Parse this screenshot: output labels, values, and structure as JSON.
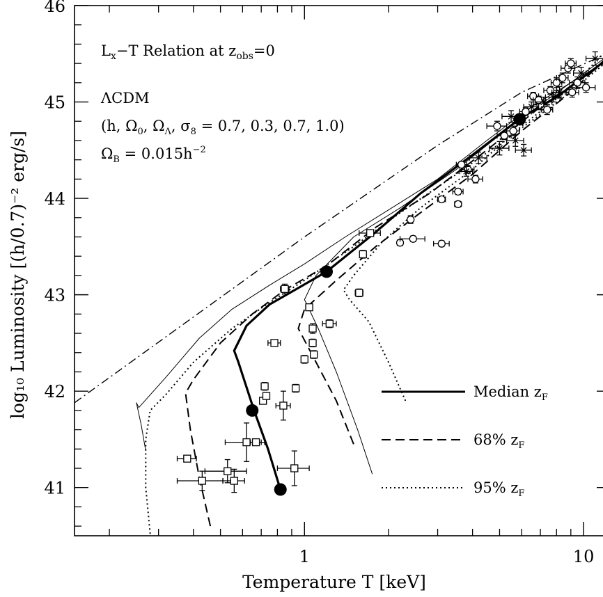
{
  "chart_data": {
    "type": "line",
    "xlabel": "Temperature T [keV]",
    "ylabel": "log₁₀ Luminosity [(h/0.7)⁻² erg/s]",
    "xscale": "log",
    "xlim": [
      0.15,
      12.5
    ],
    "ylim": [
      40.5,
      46.0
    ],
    "x_ticks": [
      {
        "value": 1,
        "label": "1"
      },
      {
        "value": 10,
        "label": "10"
      }
    ],
    "y_ticks": [
      {
        "value": 41,
        "label": "41"
      },
      {
        "value": 42,
        "label": "42"
      },
      {
        "value": 43,
        "label": "43"
      },
      {
        "value": 44,
        "label": "44"
      },
      {
        "value": 45,
        "label": "45"
      },
      {
        "value": 46,
        "label": "46"
      }
    ],
    "annotations": {
      "title": "Lx−T Relation at zobs=0",
      "cosmology": "ΛCDM",
      "params": "(h, Ω0, ΩΛ, σ8 = 0.7, 0.3, 0.7, 1.0)",
      "baryon": "ΩB = 0.015h⁻²"
    },
    "legend": [
      {
        "label": "Median zF",
        "style": "solid"
      },
      {
        "label": "68% zF",
        "style": "dashed"
      },
      {
        "label": "95% zF",
        "style": "dotted"
      }
    ],
    "series": [
      {
        "style": "dashdot",
        "width": 1.4,
        "x": [
          0.15,
          1.0,
          3.0,
          6.0,
          12.5
        ],
        "y": [
          41.88,
          43.6,
          44.55,
          45.1,
          45.52
        ]
      },
      {
        "style": "solid",
        "width": 3.2,
        "x": [
          0.82,
          0.74,
          0.66,
          0.58,
          0.56,
          0.62,
          0.75,
          0.95,
          1.2,
          1.8,
          2.6,
          4.0,
          6.0,
          8.0,
          12.5
        ],
        "y": [
          40.98,
          41.4,
          41.8,
          42.3,
          42.42,
          42.68,
          42.9,
          43.07,
          43.24,
          43.65,
          44.05,
          44.45,
          44.84,
          45.05,
          45.47
        ]
      },
      {
        "style": "solid",
        "width": 1.0,
        "x": [
          0.27,
          0.26,
          0.25,
          0.255,
          0.32,
          0.42,
          0.55,
          0.75,
          1.0,
          1.4,
          2.0,
          3.0,
          4.5,
          6.5,
          9.0,
          12.5
        ],
        "y": [
          41.38,
          41.65,
          41.88,
          41.83,
          42.15,
          42.55,
          42.85,
          43.1,
          43.32,
          43.6,
          43.88,
          44.2,
          44.6,
          44.95,
          45.2,
          45.45
        ]
      },
      {
        "style": "solid",
        "width": 1.0,
        "x": [
          1.75,
          1.55,
          1.3,
          1.12,
          1.02,
          1.0,
          1.1,
          1.5,
          2.2,
          3.5,
          5.5,
          8.5,
          12.5
        ],
        "y": [
          41.14,
          41.6,
          42.2,
          42.65,
          42.9,
          42.95,
          43.2,
          43.6,
          43.9,
          44.3,
          44.75,
          45.15,
          45.5
        ]
      },
      {
        "style": "dashed",
        "width": 2.0,
        "x": [
          0.46,
          0.42,
          0.39,
          0.375,
          0.4,
          0.5,
          0.65,
          0.85,
          1.2,
          1.8,
          2.8,
          4.5,
          7.0,
          12.5
        ],
        "y": [
          40.6,
          41.1,
          41.6,
          41.98,
          42.12,
          42.5,
          42.8,
          43.05,
          43.3,
          43.7,
          44.05,
          44.5,
          44.95,
          45.45
        ]
      },
      {
        "style": "dashed",
        "width": 2.0,
        "x": [
          1.5,
          1.3,
          1.1,
          0.95,
          1.0,
          1.3,
          1.8,
          2.6,
          4.0,
          6.0,
          9.0,
          12.5
        ],
        "y": [
          41.45,
          41.9,
          42.3,
          42.65,
          42.85,
          43.15,
          43.5,
          43.85,
          44.25,
          44.7,
          45.1,
          45.5
        ]
      },
      {
        "style": "dotted",
        "width": 2.0,
        "x": [
          0.28,
          0.27,
          0.27,
          0.28,
          0.32,
          0.4,
          0.55,
          0.75,
          1.0,
          1.5,
          2.2,
          3.5,
          5.5,
          8.5,
          12.5
        ],
        "y": [
          40.52,
          41.0,
          41.5,
          41.8,
          41.97,
          42.3,
          42.65,
          42.92,
          43.15,
          43.5,
          43.85,
          44.25,
          44.65,
          45.05,
          45.45
        ]
      },
      {
        "style": "dotted",
        "width": 2.0,
        "x": [
          2.3,
          2.0,
          1.7,
          1.45,
          1.38,
          1.5,
          1.9,
          2.6,
          4.0,
          6.0,
          9.0,
          12.5
        ],
        "y": [
          41.9,
          42.3,
          42.72,
          42.95,
          43.05,
          43.2,
          43.55,
          43.9,
          44.3,
          44.75,
          45.15,
          45.58
        ]
      }
    ],
    "marker_points": [
      {
        "x": 0.82,
        "y": 40.98
      },
      {
        "x": 0.65,
        "y": 41.8
      },
      {
        "x": 1.2,
        "y": 43.24
      },
      {
        "x": 5.9,
        "y": 44.82
      }
    ],
    "observations_squares": [
      {
        "x": 0.38,
        "y": 41.3,
        "xerr": 0.03,
        "yerr": 0.03
      },
      {
        "x": 0.43,
        "y": 41.07,
        "xerr": 0.08,
        "yerr": 0.1
      },
      {
        "x": 0.53,
        "y": 41.17,
        "xerr": 0.09,
        "yerr": 0.12
      },
      {
        "x": 0.56,
        "y": 41.07,
        "xerr": 0.05,
        "yerr": 0.12
      },
      {
        "x": 0.62,
        "y": 41.47,
        "xerr": 0.1,
        "yerr": 0.2
      },
      {
        "x": 0.67,
        "y": 41.47,
        "xerr": 0.03,
        "yerr": 0.03
      },
      {
        "x": 0.71,
        "y": 41.9,
        "xerr": 0.02,
        "yerr": 0.03
      },
      {
        "x": 0.72,
        "y": 42.05,
        "xerr": 0.02,
        "yerr": 0.04
      },
      {
        "x": 0.73,
        "y": 41.95,
        "xerr": 0.02,
        "yerr": 0.03
      },
      {
        "x": 0.84,
        "y": 41.85,
        "xerr": 0.05,
        "yerr": 0.15
      },
      {
        "x": 0.92,
        "y": 41.2,
        "xerr": 0.12,
        "yerr": 0.18
      },
      {
        "x": 0.93,
        "y": 42.03,
        "xerr": 0.02,
        "yerr": 0.04
      },
      {
        "x": 0.78,
        "y": 42.5,
        "xerr": 0.04,
        "yerr": 0.03
      },
      {
        "x": 0.85,
        "y": 43.06,
        "xerr": 0.03,
        "yerr": 0.05
      },
      {
        "x": 1.0,
        "y": 42.33,
        "xerr": 0.02,
        "yerr": 0.04
      },
      {
        "x": 1.04,
        "y": 42.87,
        "xerr": 0.03,
        "yerr": 0.03
      },
      {
        "x": 1.07,
        "y": 42.5,
        "xerr": 0.02,
        "yerr": 0.04
      },
      {
        "x": 1.07,
        "y": 42.65,
        "xerr": 0.02,
        "yerr": 0.05
      },
      {
        "x": 1.08,
        "y": 42.38,
        "xerr": 0.03,
        "yerr": 0.04
      },
      {
        "x": 1.23,
        "y": 42.7,
        "xerr": 0.07,
        "yerr": 0.04
      },
      {
        "x": 1.57,
        "y": 43.02,
        "xerr": 0.05,
        "yerr": 0.04
      },
      {
        "x": 1.62,
        "y": 43.42,
        "xerr": 0.04,
        "yerr": 0.04
      },
      {
        "x": 1.72,
        "y": 43.64,
        "xerr": 0.15,
        "yerr": 0.03
      }
    ],
    "observations_circles": [
      {
        "x": 2.2,
        "y": 43.54,
        "xerr": 0.05,
        "yerr": 0.03
      },
      {
        "x": 2.45,
        "y": 43.58,
        "xerr": 0.25,
        "yerr": 0.03
      },
      {
        "x": 2.4,
        "y": 43.78,
        "xerr": 0.05,
        "yerr": 0.04
      },
      {
        "x": 3.1,
        "y": 43.53,
        "xerr": 0.2,
        "yerr": 0.03
      },
      {
        "x": 3.1,
        "y": 43.99,
        "xerr": 0.1,
        "yerr": 0.03
      },
      {
        "x": 3.55,
        "y": 43.94,
        "xerr": 0.1,
        "yerr": 0.03
      },
      {
        "x": 3.55,
        "y": 44.07,
        "xerr": 0.15,
        "yerr": 0.03
      },
      {
        "x": 3.85,
        "y": 44.3,
        "xerr": 0.2,
        "yerr": 0.04
      },
      {
        "x": 3.65,
        "y": 44.35,
        "xerr": 0.15,
        "yerr": 0.03
      },
      {
        "x": 4.1,
        "y": 44.2,
        "xerr": 0.25,
        "yerr": 0.04
      },
      {
        "x": 4.9,
        "y": 44.75,
        "xerr": 0.4,
        "yerr": 0.05
      },
      {
        "x": 5.2,
        "y": 44.65,
        "xerr": 0.3,
        "yerr": 0.04
      },
      {
        "x": 5.6,
        "y": 44.7,
        "xerr": 0.3,
        "yerr": 0.05
      },
      {
        "x": 6.2,
        "y": 44.9,
        "xerr": 0.3,
        "yerr": 0.04
      },
      {
        "x": 6.6,
        "y": 45.06,
        "xerr": 0.3,
        "yerr": 0.04
      },
      {
        "x": 7.0,
        "y": 44.97,
        "xerr": 0.4,
        "yerr": 0.05
      },
      {
        "x": 7.4,
        "y": 44.92,
        "xerr": 0.35,
        "yerr": 0.05
      },
      {
        "x": 7.6,
        "y": 45.12,
        "xerr": 0.4,
        "yerr": 0.04
      },
      {
        "x": 8.0,
        "y": 45.2,
        "xerr": 0.35,
        "yerr": 0.05
      },
      {
        "x": 8.4,
        "y": 45.25,
        "xerr": 0.4,
        "yerr": 0.05
      },
      {
        "x": 8.8,
        "y": 45.35,
        "xerr": 0.5,
        "yerr": 0.05
      },
      {
        "x": 9.0,
        "y": 45.4,
        "xerr": 0.4,
        "yerr": 0.05
      },
      {
        "x": 9.1,
        "y": 45.1,
        "xerr": 0.5,
        "yerr": 0.05
      },
      {
        "x": 9.5,
        "y": 45.2,
        "xerr": 0.6,
        "yerr": 0.06
      },
      {
        "x": 10.2,
        "y": 45.15,
        "xerr": 0.8,
        "yerr": 0.05
      },
      {
        "x": 6.9,
        "y": 45.02,
        "xerr": 0.3,
        "yerr": 0.04
      }
    ],
    "observations_crosses": [
      {
        "x": 3.8,
        "y": 44.28,
        "xerr": 0.2,
        "yerr": 0.05
      },
      {
        "x": 4.2,
        "y": 44.42,
        "xerr": 0.3,
        "yerr": 0.06
      },
      {
        "x": 5.0,
        "y": 44.52,
        "xerr": 0.4,
        "yerr": 0.07
      },
      {
        "x": 5.7,
        "y": 44.6,
        "xerr": 0.4,
        "yerr": 0.06
      },
      {
        "x": 6.1,
        "y": 44.5,
        "xerr": 0.4,
        "yerr": 0.06
      },
      {
        "x": 5.5,
        "y": 44.85,
        "xerr": 0.4,
        "yerr": 0.06
      },
      {
        "x": 6.5,
        "y": 44.95,
        "xerr": 0.4,
        "yerr": 0.05
      },
      {
        "x": 7.2,
        "y": 45.0,
        "xerr": 0.5,
        "yerr": 0.05
      },
      {
        "x": 8.2,
        "y": 45.1,
        "xerr": 0.5,
        "yerr": 0.06
      },
      {
        "x": 9.8,
        "y": 45.3,
        "xerr": 0.6,
        "yerr": 0.06
      },
      {
        "x": 11.0,
        "y": 45.45,
        "xerr": 0.8,
        "yerr": 0.07
      },
      {
        "x": 7.8,
        "y": 45.05,
        "xerr": 0.5,
        "yerr": 0.05
      }
    ]
  }
}
